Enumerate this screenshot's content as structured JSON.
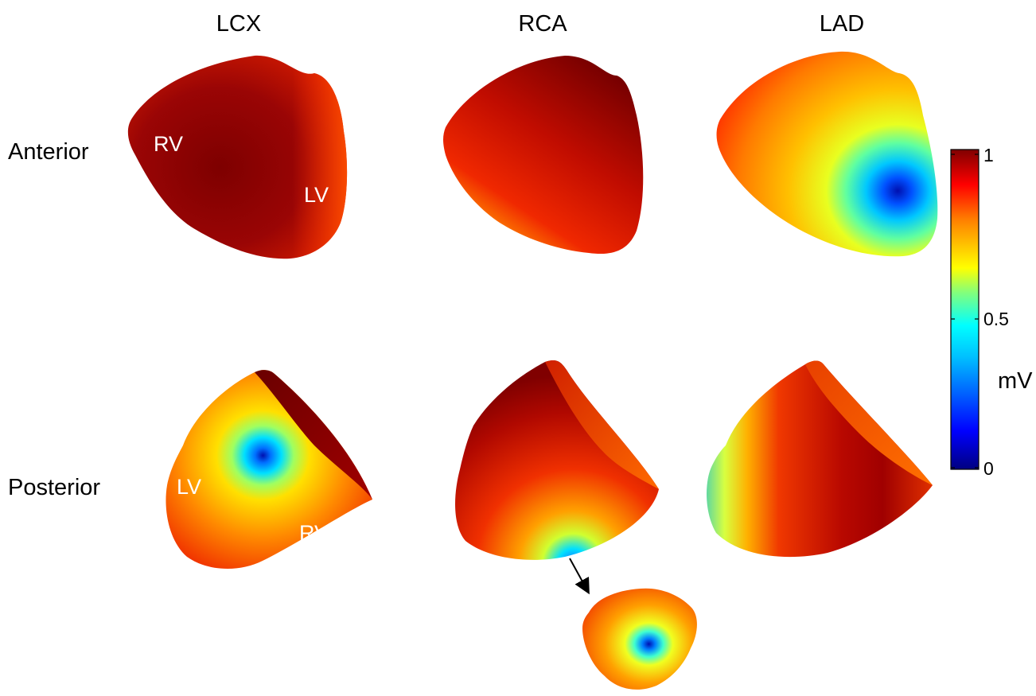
{
  "columns": [
    "LCX",
    "RCA",
    "LAD"
  ],
  "rows": [
    "Anterior",
    "Posterior"
  ],
  "region_labels": {
    "lcx_anterior_rv": "RV",
    "lcx_anterior_lv": "LV",
    "lcx_posterior_lv": "LV",
    "lcx_posterior_rv": "RV"
  },
  "colorbar": {
    "unit": "mV",
    "ticks": [
      "1",
      "0.5",
      "0"
    ],
    "range": [
      0,
      1
    ],
    "colormap": "jet",
    "colors": [
      "#000080",
      "#0000ff",
      "#00bfff",
      "#00ffff",
      "#7fff7f",
      "#ffff00",
      "#ff8000",
      "#ff0000",
      "#800000"
    ]
  },
  "maps": {
    "lcx_anterior": {
      "max_color": "#8b0000",
      "min_color": "#c81400"
    },
    "rca_anterior": {
      "max_color": "#7a0000",
      "min_color": "#ffb000"
    },
    "lad_anterior": {
      "min_value_region": "apex",
      "min_color": "#0018c8"
    },
    "lcx_posterior": {
      "min_value_region": "lv-center",
      "min_color": "#0020d0"
    },
    "rca_posterior": {
      "min_value_region": "apex-inferior",
      "min_color": "#1e90ff"
    },
    "lad_posterior": {
      "min_value_region": "left-edge",
      "min_color": "#6ed89a"
    },
    "rca_apex_inset": {
      "min_value_region": "center",
      "min_color": "#0018c8"
    }
  }
}
